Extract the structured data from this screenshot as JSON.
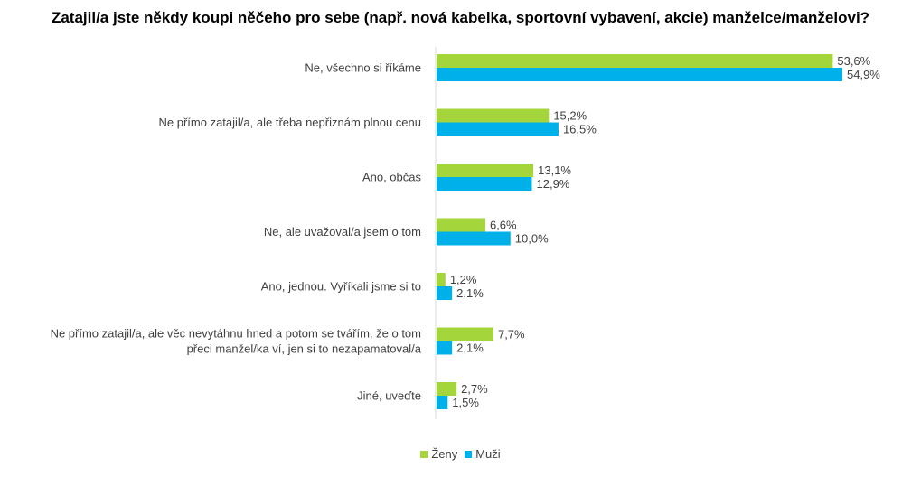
{
  "chart_data": {
    "type": "bar",
    "orientation": "horizontal",
    "title": "Zatajil/a jste někdy koupi něčeho pro sebe (např. nová kabelka, sportovní vybavení, akcie) manželce/manželovi?",
    "categories": [
      [
        "Ne, všechno si říkáme"
      ],
      [
        "Ne přímo zatajil/a, ale třeba nepřiznám plnou cenu"
      ],
      [
        "Ano, občas"
      ],
      [
        "Ne, ale uvažoval/a jsem o tom"
      ],
      [
        "Ano, jednou. Vyříkali jsme si to"
      ],
      [
        "Ne přímo zatajil/a, ale věc nevytáhnu hned a potom se tvářím, že o tom",
        "přeci manžel/ka ví, jen si to nezapamatoval/a"
      ],
      [
        "Jiné, uveďte"
      ]
    ],
    "series": [
      {
        "name": "Ženy",
        "color": "#a4d63c",
        "values": [
          53.6,
          15.2,
          13.1,
          6.6,
          1.2,
          7.7,
          2.7
        ],
        "labels": [
          "53,6%",
          "15,2%",
          "13,1%",
          "6,6%",
          "1,2%",
          "7,7%",
          "2,7%"
        ]
      },
      {
        "name": "Muži",
        "color": "#00b0e8",
        "values": [
          54.9,
          16.5,
          12.9,
          10.0,
          2.1,
          2.1,
          1.5
        ],
        "labels": [
          "54,9%",
          "16,5%",
          "12,9%",
          "10,0%",
          "2,1%",
          "2,1%",
          "1,5%"
        ]
      }
    ],
    "xlim": [
      0,
      54.9
    ],
    "grid": false,
    "legend_position": "bottom"
  }
}
